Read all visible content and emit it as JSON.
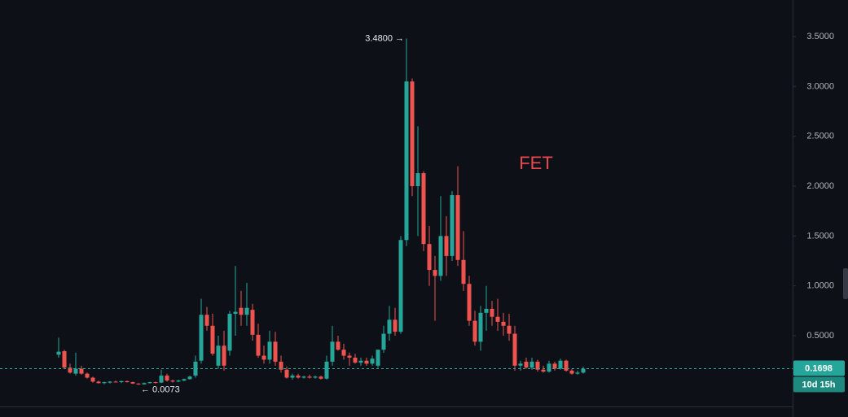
{
  "chart_data": {
    "type": "candlestick",
    "title": "FET",
    "title_color": "#e8494e",
    "up_color": "#26a69a",
    "down_color": "#ef5350",
    "open": [
      0.31,
      0.345,
      0.18,
      0.12,
      0.17,
      0.12,
      0.08,
      0.04,
      0.025,
      0.03,
      0.04,
      0.035,
      0.045,
      0.035,
      0.02,
      0.012,
      0.025,
      0.035,
      0.03,
      0.1,
      0.05,
      0.04,
      0.05,
      0.065,
      0.1,
      0.25,
      0.71,
      0.6,
      0.2,
      0.4,
      0.35,
      0.72,
      0.78,
      0.71,
      0.76,
      0.51,
      0.3,
      0.26,
      0.44,
      0.24,
      0.16,
      0.08,
      0.1,
      0.08,
      0.09,
      0.08,
      0.09,
      0.07,
      0.24,
      0.44,
      0.36,
      0.3,
      0.28,
      0.23,
      0.25,
      0.22,
      0.2,
      0.36,
      0.52,
      0.66,
      0.54,
      1.46,
      3.05,
      2.0,
      2.13,
      1.42,
      1.16,
      1.1,
      1.5,
      1.3,
      1.91,
      1.26,
      1.02,
      0.65,
      0.44,
      0.73,
      0.77,
      0.69,
      0.64,
      0.6,
      0.52,
      0.2,
      0.24,
      0.18,
      0.24,
      0.16,
      0.14,
      0.22,
      0.17,
      0.25,
      0.15,
      0.12,
      0.13
    ],
    "high": [
      0.48,
      0.36,
      0.22,
      0.33,
      0.2,
      0.13,
      0.09,
      0.05,
      0.04,
      0.045,
      0.05,
      0.05,
      0.05,
      0.04,
      0.025,
      0.03,
      0.04,
      0.04,
      0.16,
      0.12,
      0.06,
      0.06,
      0.07,
      0.1,
      0.3,
      0.87,
      0.79,
      0.72,
      0.5,
      0.55,
      0.75,
      1.2,
      0.95,
      1.03,
      0.82,
      0.62,
      0.4,
      0.55,
      0.54,
      0.3,
      0.19,
      0.12,
      0.12,
      0.1,
      0.11,
      0.1,
      0.1,
      0.3,
      0.6,
      0.5,
      0.42,
      0.33,
      0.32,
      0.28,
      0.28,
      0.3,
      0.35,
      0.6,
      0.8,
      0.78,
      1.5,
      3.48,
      3.08,
      2.6,
      2.15,
      1.6,
      1.3,
      1.9,
      1.7,
      1.95,
      2.2,
      1.55,
      1.1,
      0.75,
      0.8,
      1.0,
      0.85,
      0.87,
      0.73,
      0.72,
      0.6,
      0.25,
      0.28,
      0.28,
      0.26,
      0.2,
      0.25,
      0.24,
      0.27,
      0.26,
      0.17,
      0.15,
      0.19
    ],
    "low": [
      0.28,
      0.17,
      0.12,
      0.1,
      0.11,
      0.07,
      0.03,
      0.02,
      0.015,
      0.02,
      0.03,
      0.025,
      0.03,
      0.015,
      0.0073,
      0.01,
      0.02,
      0.02,
      0.025,
      0.04,
      0.03,
      0.035,
      0.045,
      0.06,
      0.08,
      0.22,
      0.55,
      0.3,
      0.17,
      0.15,
      0.3,
      0.5,
      0.6,
      0.6,
      0.45,
      0.28,
      0.22,
      0.22,
      0.2,
      0.13,
      0.07,
      0.06,
      0.07,
      0.07,
      0.07,
      0.07,
      0.06,
      0.06,
      0.2,
      0.35,
      0.26,
      0.2,
      0.22,
      0.2,
      0.2,
      0.2,
      0.18,
      0.33,
      0.45,
      0.5,
      0.52,
      1.4,
      1.9,
      1.5,
      1.35,
      1.0,
      0.65,
      1.05,
      1.1,
      1.25,
      1.2,
      0.95,
      0.6,
      0.4,
      0.35,
      0.55,
      0.6,
      0.55,
      0.5,
      0.45,
      0.15,
      0.15,
      0.17,
      0.16,
      0.14,
      0.13,
      0.13,
      0.15,
      0.16,
      0.14,
      0.11,
      0.11,
      0.12
    ],
    "close": [
      0.34,
      0.18,
      0.13,
      0.17,
      0.12,
      0.08,
      0.04,
      0.025,
      0.035,
      0.04,
      0.035,
      0.045,
      0.035,
      0.02,
      0.012,
      0.025,
      0.035,
      0.03,
      0.1,
      0.05,
      0.04,
      0.05,
      0.065,
      0.09,
      0.24,
      0.71,
      0.6,
      0.32,
      0.4,
      0.2,
      0.72,
      0.74,
      0.71,
      0.78,
      0.51,
      0.3,
      0.26,
      0.44,
      0.24,
      0.16,
      0.08,
      0.1,
      0.08,
      0.09,
      0.08,
      0.09,
      0.07,
      0.24,
      0.44,
      0.36,
      0.3,
      0.28,
      0.23,
      0.25,
      0.22,
      0.27,
      0.36,
      0.52,
      0.66,
      0.54,
      1.46,
      3.05,
      2.0,
      2.13,
      1.42,
      1.16,
      1.1,
      1.5,
      1.3,
      1.91,
      1.26,
      1.02,
      0.65,
      0.44,
      0.73,
      0.77,
      0.69,
      0.64,
      0.6,
      0.52,
      0.2,
      0.22,
      0.18,
      0.24,
      0.16,
      0.14,
      0.22,
      0.17,
      0.25,
      0.15,
      0.12,
      0.13,
      0.1698
    ],
    "ylim": [
      -0.209,
      3.867
    ],
    "yticks": [
      {
        "value": 0.5,
        "label": "0.5000"
      },
      {
        "value": 1.0,
        "label": "1.0000"
      },
      {
        "value": 1.5,
        "label": "1.5000"
      },
      {
        "value": 2.0,
        "label": "2.0000"
      },
      {
        "value": 2.5,
        "label": "2.5000"
      },
      {
        "value": 3.0,
        "label": "3.0000"
      },
      {
        "value": 3.5,
        "label": "3.5000"
      }
    ],
    "annotations": [
      {
        "value": 3.48,
        "label": "3.4800 →"
      },
      {
        "value": 0.0073,
        "label": "← 0.0073"
      }
    ],
    "last_price": {
      "value": 0.1698,
      "label": "0.1698"
    },
    "countdown": "10d 15h"
  }
}
